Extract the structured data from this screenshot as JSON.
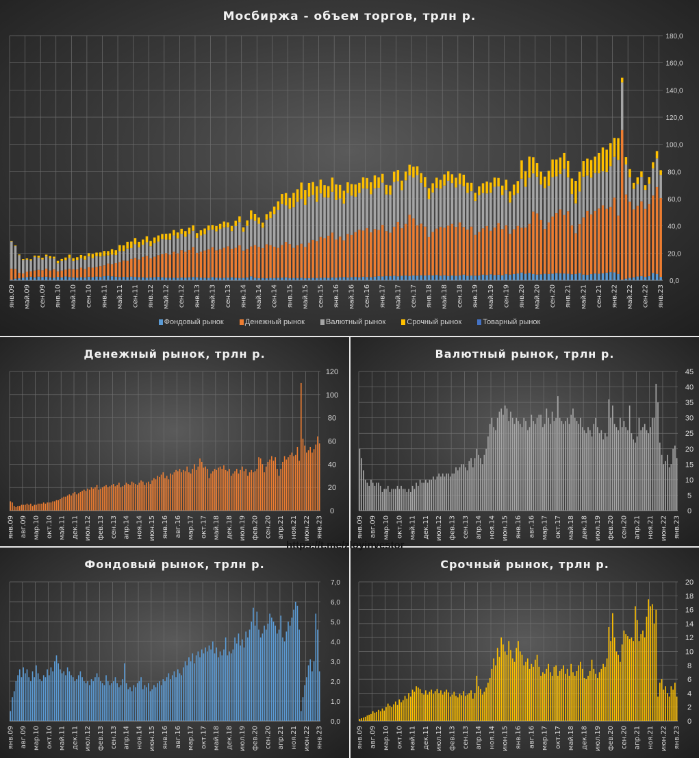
{
  "watermark": "https://t.me/zloyinvestor",
  "colors": {
    "fond": "#5B9BD5",
    "money": "#ED7D31",
    "fx": "#A5A5A5",
    "futures": "#FFC000",
    "commodity": "#4472C4"
  },
  "series_data": {
    "fond": [
      0.5,
      1.2,
      1.5,
      2.0,
      2.3,
      2.6,
      2.2,
      2.7,
      2.4,
      2.6,
      2.2,
      2.0,
      2.5,
      2.2,
      2.8,
      2.4,
      2.1,
      2.0,
      2.3,
      2.2,
      2.6,
      2.3,
      2.7,
      2.5,
      3.0,
      3.3,
      2.9,
      2.6,
      2.4,
      2.5,
      2.3,
      2.7,
      2.5,
      2.3,
      2.2,
      2.0,
      2.1,
      2.3,
      2.5,
      2.2,
      2.0,
      1.9,
      2.0,
      1.8,
      2.1,
      2.0,
      2.2,
      2.4,
      2.2,
      2.0,
      1.9,
      1.8,
      2.3,
      2.0,
      1.8,
      1.9,
      2.0,
      2.2,
      1.9,
      1.7,
      1.8,
      2.1,
      2.9,
      1.9,
      1.6,
      1.7,
      1.5,
      1.8,
      1.7,
      1.9,
      2.0,
      2.2,
      1.6,
      1.8,
      1.7,
      1.9,
      1.5,
      1.6,
      1.8,
      1.7,
      1.9,
      2.0,
      1.8,
      2.1,
      2.0,
      2.2,
      2.4,
      2.1,
      2.3,
      2.5,
      2.2,
      2.6,
      2.4,
      2.3,
      2.7,
      3.0,
      2.8,
      3.2,
      3.0,
      3.4,
      2.9,
      3.3,
      3.5,
      3.2,
      3.6,
      3.4,
      3.7,
      3.5,
      3.8,
      3.6,
      4.0,
      3.4,
      3.7,
      3.2,
      3.5,
      3.3,
      3.6,
      4.2,
      3.3,
      3.5,
      3.4,
      3.6,
      4.2,
      3.9,
      4.4,
      3.8,
      4.1,
      3.7,
      4.5,
      4.2,
      4.6,
      5.0,
      5.7,
      4.8,
      5.5,
      4.6,
      4.2,
      4.4,
      4.8,
      4.6,
      4.9,
      5.4,
      5.2,
      5.0,
      4.8,
      4.4,
      4.6,
      5.3,
      4.2,
      4.0,
      4.5,
      5.0,
      4.8,
      5.2,
      5.6,
      6.0,
      5.8,
      4.6,
      0.5,
      1.2,
      1.8,
      2.2,
      2.8,
      3.1,
      2.5,
      3.0,
      5.4,
      4.6,
      2.5
    ],
    "money": [
      8,
      7,
      4,
      3,
      4,
      4,
      5,
      5,
      5,
      6,
      5,
      6,
      4,
      5,
      5,
      6,
      6,
      6,
      7,
      6,
      7,
      7,
      7,
      8,
      8,
      9,
      9,
      10,
      11,
      12,
      12,
      13,
      14,
      13,
      15,
      16,
      14,
      15,
      16,
      17,
      18,
      17,
      19,
      18,
      20,
      19,
      20,
      22,
      18,
      19,
      20,
      21,
      22,
      20,
      21,
      22,
      23,
      21,
      22,
      24,
      20,
      21,
      22,
      24,
      23,
      22,
      25,
      24,
      23,
      22,
      24,
      26,
      25,
      22,
      24,
      25,
      23,
      26,
      28,
      27,
      30,
      29,
      31,
      33,
      28,
      30,
      27,
      32,
      31,
      33,
      35,
      34,
      36,
      33,
      35,
      34,
      38,
      33,
      32,
      36,
      40,
      35,
      38,
      45,
      42,
      37,
      38,
      36,
      28,
      32,
      34,
      36,
      35,
      37,
      38,
      36,
      39,
      35,
      34,
      36,
      30,
      32,
      34,
      36,
      32,
      35,
      38,
      34,
      36,
      30,
      33,
      35,
      33,
      34,
      36,
      46,
      45,
      40,
      33,
      38,
      42,
      44,
      47,
      43,
      46,
      36,
      30,
      36,
      42,
      47,
      44,
      46,
      48,
      50,
      47,
      48,
      55,
      43,
      110,
      62,
      56,
      50,
      52,
      55,
      50,
      53,
      57,
      64,
      58
    ],
    "fx": [
      20,
      17,
      13,
      10,
      9,
      8,
      10,
      9,
      8,
      9,
      9,
      8,
      6,
      7,
      7,
      8,
      6,
      7,
      7,
      7,
      8,
      7,
      8,
      7,
      7,
      6,
      7,
      6,
      8,
      7,
      9,
      8,
      10,
      9,
      9,
      10,
      9,
      10,
      10,
      11,
      10,
      11,
      12,
      11,
      12,
      11,
      12,
      12,
      11,
      12,
      12,
      14,
      13,
      14,
      15,
      15,
      14,
      13,
      16,
      17,
      14,
      17,
      20,
      18,
      17,
      15,
      18,
      20,
      24,
      28,
      30,
      27,
      26,
      30,
      32,
      33,
      31,
      34,
      33,
      29,
      32,
      30,
      28,
      30,
      29,
      28,
      27,
      30,
      29,
      26,
      27,
      31,
      29,
      28,
      30,
      31,
      31,
      27,
      28,
      33,
      30,
      28,
      32,
      29,
      30,
      37,
      30,
      29,
      28,
      29,
      30,
      28,
      31,
      33,
      30,
      29,
      28,
      30,
      27,
      26,
      25,
      27,
      26,
      24,
      28,
      30,
      27,
      25,
      26,
      23,
      25,
      24,
      36,
      30,
      34,
      28,
      27,
      26,
      30,
      27,
      29,
      27,
      26,
      34,
      25,
      23,
      22,
      24,
      30,
      26,
      27,
      28,
      26,
      25,
      27,
      30,
      30,
      41,
      35,
      22,
      18,
      15,
      16,
      18,
      14,
      15,
      20,
      21,
      17
    ],
    "futures": [
      0.3,
      0.4,
      0.5,
      0.6,
      0.8,
      0.9,
      1.0,
      1.4,
      1.2,
      1.3,
      1.6,
      1.4,
      1.8,
      1.5,
      2.0,
      2.5,
      2.2,
      2.0,
      2.4,
      2.8,
      2.3,
      3.1,
      2.7,
      3.0,
      3.6,
      3.2,
      4.0,
      3.5,
      4.5,
      4.2,
      5.0,
      4.8,
      4.6,
      4.0,
      3.8,
      4.4,
      3.8,
      4.2,
      4.5,
      3.9,
      4.3,
      4.6,
      4.0,
      4.4,
      3.8,
      4.2,
      4.5,
      4.1,
      3.5,
      3.8,
      4.2,
      3.6,
      3.4,
      3.9,
      3.7,
      4.3,
      3.6,
      3.8,
      4.0,
      4.4,
      3.2,
      4.0,
      6.5,
      5.0,
      4.6,
      3.8,
      4.2,
      4.8,
      5.5,
      6.2,
      7.5,
      9.0,
      8.0,
      10.5,
      9.2,
      12.0,
      11.0,
      10.0,
      9.5,
      11.5,
      10.2,
      9.0,
      8.5,
      10.5,
      11.5,
      10.0,
      9.5,
      8.0,
      8.5,
      9.0,
      7.5,
      8.2,
      7.8,
      8.8,
      9.5,
      7.8,
      6.5,
      7.0,
      6.8,
      7.5,
      8.2,
      7.0,
      6.5,
      7.8,
      8.0,
      6.5,
      7.2,
      7.5,
      8.0,
      6.8,
      7.5,
      6.5,
      8.2,
      7.0,
      6.5,
      7.2,
      8.0,
      8.5,
      7.5,
      6.2,
      6.0,
      6.5,
      7.2,
      8.8,
      7.5,
      6.8,
      6.2,
      7.0,
      7.5,
      8.2,
      7.8,
      9.0,
      13.5,
      11.5,
      15.5,
      12.0,
      10.0,
      9.5,
      8.5,
      11.0,
      13.0,
      12.5,
      12.2,
      11.8,
      12.0,
      11.5,
      16.5,
      14.5,
      11.5,
      12.5,
      13.0,
      12.0,
      15.0,
      17.5,
      16.5,
      16.8,
      14.0,
      16.0,
      3.5,
      5.5,
      6.0,
      4.5,
      5.0,
      4.0,
      3.5,
      5.0,
      4.5,
      5.5,
      3.5
    ]
  },
  "chart_data": [
    {
      "id": "total",
      "type": "bar",
      "stacked": true,
      "title": "Мосбиржа  - объем торгов,  трлн р.",
      "period": "янв.09 – янв.23, monthly",
      "ylim": [
        0,
        180
      ],
      "yticks": [
        "0,0",
        "20,0",
        "40,0",
        "60,0",
        "80,0",
        "100,0",
        "120,0",
        "140,0",
        "160,0",
        "180,0"
      ],
      "xtick_step_months": 4,
      "xticks": [
        "янв.09",
        "май.09",
        "сен.09",
        "янв.10",
        "май.10",
        "сен.10",
        "янв.11",
        "май.11",
        "сен.11",
        "янв.12",
        "май.12",
        "сен.12",
        "янв.13",
        "май.13",
        "сен.13",
        "янв.14",
        "май.14",
        "сен.14",
        "янв.15",
        "май.15",
        "сен.15",
        "янв.16",
        "май.16",
        "сен.16",
        "янв.17",
        "май.17",
        "сен.17",
        "янв.18",
        "май.18",
        "сен.18",
        "янв.19",
        "май.19",
        "сен.19",
        "янв.20",
        "май.20",
        "сен.20",
        "янв.21",
        "май.21",
        "сен.21",
        "янв.22",
        "май.22",
        "сен.22",
        "янв.23"
      ],
      "grid": true,
      "legend_position": "bottom",
      "series": [
        {
          "key": "fond",
          "name": "Фондовый рынок"
        },
        {
          "key": "money",
          "name": "Денежный рынок"
        },
        {
          "key": "fx",
          "name": "Валютный рынок"
        },
        {
          "key": "futures",
          "name": "Срочный рынок"
        },
        {
          "key": "commodity",
          "name": "Товарный рынок"
        }
      ]
    },
    {
      "id": "money",
      "type": "bar",
      "title": "Денежный рынок, трлн р.",
      "series_key": "money",
      "ylim": [
        0,
        120
      ],
      "yticks": [
        "0",
        "20",
        "40",
        "60",
        "80",
        "100",
        "120"
      ],
      "xtick_step_months": 7,
      "xticks": [
        "янв.09",
        "авг.09",
        "мар.10",
        "окт.10",
        "май.11",
        "дек.11",
        "июл.12",
        "фев.13",
        "сен.13",
        "апр.14",
        "ноя.14",
        "июн.15",
        "янв.16",
        "авг.16",
        "мар.17",
        "окт.17",
        "май.18",
        "дек.18",
        "июл.19",
        "фев.20",
        "сен.20",
        "апр.21",
        "ноя.21",
        "июн.22",
        "янв.23"
      ],
      "grid": true
    },
    {
      "id": "fx",
      "type": "bar",
      "title": "Валютный рынок, трлн р.",
      "series_key": "fx",
      "ylim": [
        0,
        45
      ],
      "yticks": [
        "0",
        "5",
        "10",
        "15",
        "20",
        "25",
        "30",
        "35",
        "40",
        "45"
      ],
      "xtick_step_months": 7,
      "xticks": [
        "янв.09",
        "авг.09",
        "мар.10",
        "окт.10",
        "май.11",
        "дек.11",
        "июл.12",
        "фев.13",
        "сен.13",
        "апр.14",
        "ноя.14",
        "июн.15",
        "янв.16",
        "авг.16",
        "мар.17",
        "окт.17",
        "май.18",
        "дек.18",
        "июл.19",
        "фев.20",
        "сен.20",
        "апр.21",
        "ноя.21",
        "июн.22",
        "янв.23"
      ],
      "grid": true
    },
    {
      "id": "fond",
      "type": "bar",
      "title": "Фондовый рынок, трлн р.",
      "series_key": "fond",
      "ylim": [
        0,
        7
      ],
      "yticks": [
        "0,0",
        "1,0",
        "2,0",
        "3,0",
        "4,0",
        "5,0",
        "6,0",
        "7,0"
      ],
      "xtick_step_months": 7,
      "xticks": [
        "янв.09",
        "авг.09",
        "мар.10",
        "окт.10",
        "май.11",
        "дек.11",
        "июл.12",
        "фев.13",
        "сен.13",
        "апр.14",
        "ноя.14",
        "июн.15",
        "янв.16",
        "авг.16",
        "мар.17",
        "окт.17",
        "май.18",
        "дек.18",
        "июл.19",
        "фев.20",
        "сен.20",
        "апр.21",
        "ноя.21",
        "июн.22",
        "янв.23"
      ],
      "grid": true
    },
    {
      "id": "futures",
      "type": "bar",
      "title": "Срочный рынок, трлн р.",
      "series_key": "futures",
      "ylim": [
        0,
        20
      ],
      "yticks": [
        "0",
        "2",
        "4",
        "6",
        "8",
        "10",
        "12",
        "14",
        "16",
        "18",
        "20"
      ],
      "xtick_step_months": 7,
      "xticks": [
        "янв.09",
        "авг.09",
        "мар.10",
        "окт.10",
        "май.11",
        "дек.11",
        "июл.12",
        "фев.13",
        "сен.13",
        "апр.14",
        "ноя.14",
        "июн.15",
        "янв.16",
        "авг.16",
        "мар.17",
        "окт.17",
        "май.18",
        "дек.18",
        "июл.19",
        "фев.20",
        "сен.20",
        "апр.21",
        "ноя.21",
        "июн.22",
        "янв.23"
      ],
      "grid": true
    }
  ]
}
